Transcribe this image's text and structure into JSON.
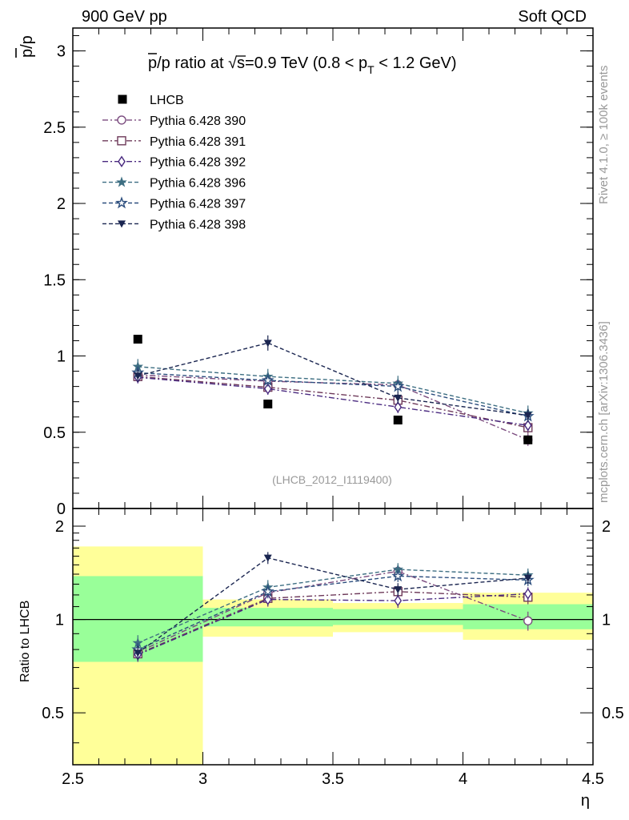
{
  "header": {
    "left": "900 GeV pp",
    "right": "Soft QCD",
    "rivet": "Rivet 4.1.0, ≥ 100k events",
    "mcplots": "mcplots.cern.ch [arXiv:1306.3436]",
    "analysis_tag": "(LHCB_2012_I1119400)"
  },
  "colors": {
    "lhcb": "#000000",
    "band_inner": "#99ff99",
    "band_outer": "#ffff99"
  },
  "chart_data": [
    {
      "id": "main",
      "type": "scatter",
      "title": "p̄/p ratio at √s=0.9 TeV (0.8 < pT < 1.2 GeV)",
      "title_parts": {
        "a": "p",
        "b": "/p ratio at ",
        "c": "√",
        "d": "s",
        "e": "=0.9 TeV (0.8 < p",
        "f": "T",
        "g": " < 1.2 GeV)"
      },
      "ylabel": "p/p",
      "xlim": [
        2.5,
        4.5
      ],
      "ylim": [
        0,
        3.15
      ],
      "yticks": [
        {
          "v": 0,
          "label": "0"
        },
        {
          "v": 0.5,
          "label": "0.5"
        },
        {
          "v": 1,
          "label": "1"
        },
        {
          "v": 1.5,
          "label": "1.5"
        },
        {
          "v": 2,
          "label": "2"
        },
        {
          "v": 2.5,
          "label": "2.5"
        },
        {
          "v": 3,
          "label": "3"
        }
      ],
      "x": [
        2.75,
        3.25,
        3.75,
        4.25
      ],
      "reference": {
        "name": "LHCB",
        "values": [
          1.11,
          0.685,
          0.58,
          0.45
        ]
      },
      "series": [
        {
          "name": "Pythia 6.428 390",
          "color": "#7a4a7e",
          "marker": "circle",
          "dash": "dashdot",
          "values": [
            0.875,
            0.835,
            0.81,
            0.45
          ],
          "err": [
            0.04,
            0.04,
            0.04,
            0.04
          ]
        },
        {
          "name": "Pythia 6.428 391",
          "color": "#6e3a5a",
          "marker": "square",
          "dash": "dashdot",
          "values": [
            0.865,
            0.795,
            0.71,
            0.53
          ],
          "err": [
            0.04,
            0.04,
            0.04,
            0.04
          ]
        },
        {
          "name": "Pythia 6.428 392",
          "color": "#4a2a80",
          "marker": "diamond",
          "dash": "dashdot",
          "values": [
            0.86,
            0.785,
            0.665,
            0.545
          ],
          "err": [
            0.04,
            0.04,
            0.04,
            0.04
          ]
        },
        {
          "name": "Pythia 6.428 396",
          "color": "#3d6e82",
          "marker": "star",
          "dash": "dashed",
          "values": [
            0.93,
            0.865,
            0.82,
            0.625
          ],
          "err": [
            0.05,
            0.05,
            0.05,
            0.05
          ]
        },
        {
          "name": "Pythia 6.428 397",
          "color": "#2c4e7e",
          "marker": "star-open",
          "dash": "dashed",
          "values": [
            0.89,
            0.84,
            0.8,
            0.605
          ],
          "err": [
            0.04,
            0.04,
            0.04,
            0.04
          ]
        },
        {
          "name": "Pythia 6.428 398",
          "color": "#1a2550",
          "marker": "triangle-down",
          "dash": "dashed",
          "values": [
            0.87,
            1.085,
            0.725,
            0.61
          ],
          "err": [
            0.04,
            0.05,
            0.04,
            0.04
          ]
        }
      ]
    },
    {
      "id": "ratio",
      "type": "scatter",
      "ylabel": "Ratio to LHCB",
      "xlabel": "η",
      "xlim": [
        2.5,
        4.5
      ],
      "ylim": [
        0.34,
        2.28
      ],
      "yticks_left": [
        {
          "v": 0.5,
          "label": "0.5"
        },
        {
          "v": 1,
          "label": "1"
        },
        {
          "v": 2,
          "label": "2"
        }
      ],
      "yticks_right": [
        {
          "v": 0.5,
          "label": "0.5"
        },
        {
          "v": 1,
          "label": "1"
        },
        {
          "v": 2,
          "label": "2"
        }
      ],
      "xticks": [
        {
          "v": 2.5,
          "label": "2.5"
        },
        {
          "v": 3,
          "label": "3"
        },
        {
          "v": 3.5,
          "label": "3.5"
        },
        {
          "v": 4,
          "label": "4"
        },
        {
          "v": 4.5,
          "label": "4.5"
        }
      ],
      "bands": [
        {
          "x0": 2.5,
          "x1": 3.0,
          "inner": [
            0.73,
            1.38
          ],
          "outer": [
            0.34,
            1.72
          ]
        },
        {
          "x0": 3.0,
          "x1": 3.5,
          "inner": [
            0.95,
            1.09
          ],
          "outer": [
            0.88,
            1.16
          ]
        },
        {
          "x0": 3.5,
          "x1": 4.0,
          "inner": [
            0.96,
            1.08
          ],
          "outer": [
            0.91,
            1.13
          ]
        },
        {
          "x0": 4.0,
          "x1": 4.5,
          "inner": [
            0.93,
            1.12
          ],
          "outer": [
            0.86,
            1.22
          ]
        }
      ],
      "x": [
        2.75,
        3.25,
        3.75,
        4.25
      ],
      "series": [
        {
          "name": "Pythia 6.428 390",
          "values": [
            0.785,
            1.22,
            1.43,
            0.99
          ],
          "err": [
            0.04,
            0.06,
            0.07,
            0.07
          ]
        },
        {
          "name": "Pythia 6.428 391",
          "values": [
            0.775,
            1.17,
            1.23,
            1.18
          ],
          "err": [
            0.04,
            0.06,
            0.06,
            0.06
          ]
        },
        {
          "name": "Pythia 6.428 392",
          "values": [
            0.77,
            1.16,
            1.15,
            1.21
          ],
          "err": [
            0.04,
            0.06,
            0.06,
            0.06
          ]
        },
        {
          "name": "Pythia 6.428 396",
          "values": [
            0.84,
            1.27,
            1.45,
            1.39
          ],
          "err": [
            0.05,
            0.07,
            0.07,
            0.07
          ]
        },
        {
          "name": "Pythia 6.428 397",
          "values": [
            0.8,
            1.23,
            1.38,
            1.34
          ],
          "err": [
            0.04,
            0.06,
            0.06,
            0.06
          ]
        },
        {
          "name": "Pythia 6.428 398",
          "values": [
            0.78,
            1.58,
            1.25,
            1.36
          ],
          "err": [
            0.04,
            0.07,
            0.06,
            0.06
          ]
        }
      ]
    }
  ]
}
